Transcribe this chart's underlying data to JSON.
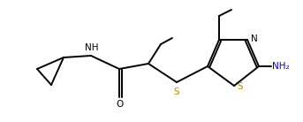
{
  "bg_color": "#ffffff",
  "line_color": "#000000",
  "bond_lw": 1.4,
  "text_color_black": "#000000",
  "text_color_blue": "#0000cc",
  "text_color_amber": "#b8860b",
  "font_size_atom": 7.5,
  "fig_width": 3.43,
  "fig_height": 1.38,
  "dpi": 100,
  "xlim": [
    0,
    343
  ],
  "ylim": [
    0,
    138
  ]
}
